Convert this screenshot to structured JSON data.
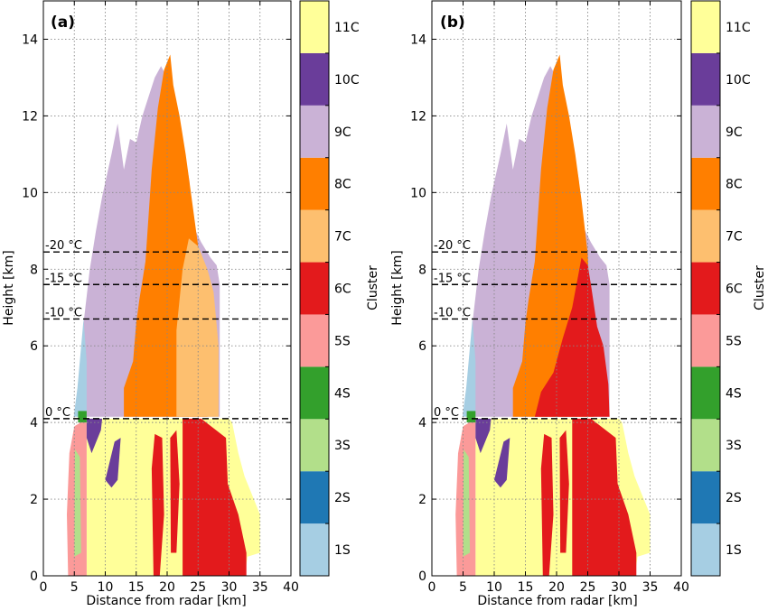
{
  "figure": {
    "panels": [
      "(a)",
      "(b)"
    ],
    "xlabel": "Distance from radar [km]",
    "ylabel": "Height [km]",
    "colorbar_label": "Cluster"
  },
  "legend": [
    {
      "label": "1S",
      "color": "#a6cee3"
    },
    {
      "label": "2S",
      "color": "#1f78b4"
    },
    {
      "label": "3S",
      "color": "#b2df8a"
    },
    {
      "label": "4S",
      "color": "#33a02c"
    },
    {
      "label": "5S",
      "color": "#fb9a99"
    },
    {
      "label": "6C",
      "color": "#e31a1c"
    },
    {
      "label": "7C",
      "color": "#fdbf6f"
    },
    {
      "label": "8C",
      "color": "#ff7f00"
    },
    {
      "label": "9C",
      "color": "#cab2d6"
    },
    {
      "label": "10C",
      "color": "#6a3d9a"
    },
    {
      "label": "11C",
      "color": "#ffff99"
    }
  ],
  "chart_data": [
    {
      "type": "heatmap",
      "panel": "(a)",
      "xlabel": "Distance from radar [km]",
      "ylabel": "Height [km]",
      "xlim": [
        0,
        40
      ],
      "ylim": [
        0,
        15
      ],
      "xticks": [
        0,
        5,
        10,
        15,
        20,
        25,
        30,
        35,
        40
      ],
      "yticks": [
        0,
        2,
        4,
        6,
        8,
        10,
        12,
        14
      ],
      "grid": true,
      "isotherms": [
        {
          "label": "0 °C",
          "height": 4.1
        },
        {
          "label": "-10 °C",
          "height": 6.7
        },
        {
          "label": "-15 °C",
          "height": 7.6
        },
        {
          "label": "-20 °C",
          "height": 8.45
        }
      ],
      "regions": [
        {
          "cluster": "9C",
          "poly": [
            [
              6.5,
              6.6
            ],
            [
              7.5,
              8.0
            ],
            [
              8.5,
              9.0
            ],
            [
              9.5,
              9.9
            ],
            [
              11.0,
              11.0
            ],
            [
              12.0,
              11.8
            ],
            [
              13.0,
              10.6
            ],
            [
              14.0,
              11.4
            ],
            [
              15.0,
              11.3
            ],
            [
              16.0,
              12.0
            ],
            [
              17.0,
              12.5
            ],
            [
              18.0,
              13.0
            ],
            [
              19.0,
              13.3
            ],
            [
              20.0,
              13.0
            ],
            [
              21.0,
              12.3
            ],
            [
              22.0,
              11.4
            ],
            [
              23.0,
              10.9
            ],
            [
              23.6,
              10.3
            ],
            [
              24.0,
              9.2
            ],
            [
              25.5,
              8.7
            ],
            [
              27.0,
              8.3
            ],
            [
              28.0,
              8.1
            ],
            [
              28.5,
              7.6
            ],
            [
              28.5,
              4.15
            ],
            [
              6.5,
              4.15
            ]
          ]
        },
        {
          "cluster": "8C",
          "poly": [
            [
              13.0,
              4.15
            ],
            [
              13.0,
              4.9
            ],
            [
              14.5,
              5.6
            ],
            [
              15.0,
              6.6
            ],
            [
              15.5,
              7.2
            ],
            [
              16.5,
              8.2
            ],
            [
              17.5,
              10.6
            ],
            [
              18.5,
              12.2
            ],
            [
              19.5,
              13.2
            ],
            [
              20.5,
              13.6
            ],
            [
              21.0,
              12.8
            ],
            [
              22.0,
              12.0
            ],
            [
              23.0,
              11.0
            ],
            [
              24.0,
              9.8
            ],
            [
              25.0,
              8.6
            ],
            [
              26.0,
              7.2
            ],
            [
              26.5,
              4.15
            ]
          ]
        },
        {
          "cluster": "7C",
          "poly": [
            [
              21.5,
              4.15
            ],
            [
              21.5,
              6.4
            ],
            [
              22.5,
              8.0
            ],
            [
              23.5,
              8.8
            ],
            [
              25.0,
              8.6
            ],
            [
              26.5,
              8.0
            ],
            [
              27.5,
              7.4
            ],
            [
              28.3,
              6.0
            ],
            [
              28.3,
              4.15
            ]
          ]
        },
        {
          "cluster": "11C",
          "poly": [
            [
              7.0,
              4.1
            ],
            [
              7.0,
              0.0
            ],
            [
              32.5,
              0.0
            ],
            [
              33.0,
              0.5
            ],
            [
              35.0,
              0.6
            ],
            [
              35.0,
              1.6
            ],
            [
              33.5,
              2.2
            ],
            [
              32.5,
              2.6
            ],
            [
              31.5,
              3.2
            ],
            [
              30.5,
              4.0
            ],
            [
              30.0,
              4.1
            ]
          ]
        },
        {
          "cluster": "6C",
          "poly": [
            [
              22.5,
              0.0
            ],
            [
              22.5,
              4.1
            ],
            [
              25.5,
              4.1
            ],
            [
              29.5,
              3.6
            ],
            [
              29.8,
              2.4
            ],
            [
              31.5,
              1.6
            ],
            [
              32.8,
              0.6
            ],
            [
              32.8,
              0.0
            ]
          ]
        },
        {
          "cluster": "6C",
          "poly": [
            [
              17.5,
              2.8
            ],
            [
              18.0,
              3.7
            ],
            [
              19.2,
              3.6
            ],
            [
              19.5,
              1.6
            ],
            [
              18.8,
              0.0
            ],
            [
              17.8,
              0.0
            ]
          ]
        },
        {
          "cluster": "6C",
          "poly": [
            [
              20.5,
              3.6
            ],
            [
              21.5,
              3.8
            ],
            [
              22.0,
              2.4
            ],
            [
              21.5,
              0.6
            ],
            [
              20.6,
              0.6
            ]
          ]
        },
        {
          "cluster": "5S",
          "poly": [
            [
              4.0,
              0.0
            ],
            [
              3.8,
              1.6
            ],
            [
              4.2,
              3.2
            ],
            [
              5.0,
              3.9
            ],
            [
              6.0,
              4.0
            ],
            [
              7.0,
              4.0
            ],
            [
              7.0,
              0.0
            ]
          ]
        },
        {
          "cluster": "3S",
          "poly": [
            [
              5.0,
              0.5
            ],
            [
              5.1,
              3.3
            ],
            [
              5.9,
              3.1
            ],
            [
              6.1,
              0.6
            ]
          ]
        },
        {
          "cluster": "10C",
          "poly": [
            [
              7.0,
              3.6
            ],
            [
              7.8,
              3.2
            ],
            [
              9.3,
              3.8
            ],
            [
              9.5,
              4.1
            ],
            [
              7.0,
              4.1
            ]
          ]
        },
        {
          "cluster": "10C",
          "poly": [
            [
              10.0,
              2.5
            ],
            [
              11.5,
              3.5
            ],
            [
              12.5,
              3.6
            ],
            [
              12.0,
              2.5
            ],
            [
              11.0,
              2.3
            ]
          ]
        },
        {
          "cluster": "1S",
          "poly": [
            [
              4.9,
              4.15
            ],
            [
              5.5,
              4.9
            ],
            [
              6.5,
              6.7
            ],
            [
              7.0,
              5.6
            ],
            [
              7.0,
              4.15
            ]
          ]
        },
        {
          "cluster": "4S",
          "poly": [
            [
              5.6,
              4.0
            ],
            [
              7.0,
              4.0
            ],
            [
              7.0,
              4.3
            ],
            [
              5.6,
              4.3
            ]
          ]
        }
      ]
    },
    {
      "type": "heatmap",
      "panel": "(b)",
      "xlabel": "Distance from radar [km]",
      "ylabel": "Height [km]",
      "xlim": [
        0,
        40
      ],
      "ylim": [
        0,
        15
      ],
      "xticks": [
        0,
        5,
        10,
        15,
        20,
        25,
        30,
        35,
        40
      ],
      "yticks": [
        0,
        2,
        4,
        6,
        8,
        10,
        12,
        14
      ],
      "grid": true,
      "isotherms": [
        {
          "label": "0 °C",
          "height": 4.1
        },
        {
          "label": "-10 °C",
          "height": 6.7
        },
        {
          "label": "-15 °C",
          "height": 7.6
        },
        {
          "label": "-20 °C",
          "height": 8.45
        }
      ],
      "regions": [
        {
          "cluster": "9C",
          "poly": [
            [
              6.5,
              6.6
            ],
            [
              7.5,
              8.0
            ],
            [
              8.5,
              9.0
            ],
            [
              9.5,
              9.9
            ],
            [
              11.0,
              11.0
            ],
            [
              12.0,
              11.8
            ],
            [
              13.0,
              10.6
            ],
            [
              14.0,
              11.4
            ],
            [
              15.0,
              11.3
            ],
            [
              16.0,
              12.0
            ],
            [
              17.0,
              12.5
            ],
            [
              18.0,
              13.0
            ],
            [
              19.0,
              13.3
            ],
            [
              20.0,
              13.0
            ],
            [
              21.0,
              12.3
            ],
            [
              22.0,
              11.4
            ],
            [
              23.0,
              10.9
            ],
            [
              23.6,
              10.3
            ],
            [
              24.0,
              9.2
            ],
            [
              25.5,
              8.7
            ],
            [
              27.0,
              8.3
            ],
            [
              28.0,
              8.1
            ],
            [
              28.5,
              7.6
            ],
            [
              28.5,
              4.15
            ],
            [
              6.5,
              4.15
            ]
          ]
        },
        {
          "cluster": "8C",
          "poly": [
            [
              13.0,
              4.15
            ],
            [
              13.0,
              4.9
            ],
            [
              14.5,
              5.6
            ],
            [
              15.0,
              6.6
            ],
            [
              15.5,
              7.2
            ],
            [
              16.5,
              8.2
            ],
            [
              17.5,
              10.6
            ],
            [
              18.5,
              12.2
            ],
            [
              19.5,
              13.2
            ],
            [
              20.5,
              13.6
            ],
            [
              21.0,
              12.8
            ],
            [
              22.0,
              12.0
            ],
            [
              23.0,
              11.0
            ],
            [
              24.0,
              9.8
            ],
            [
              25.0,
              8.4
            ],
            [
              25.5,
              6.5
            ],
            [
              26.0,
              4.15
            ]
          ]
        },
        {
          "cluster": "6C",
          "poly": [
            [
              16.5,
              4.15
            ],
            [
              17.5,
              4.8
            ],
            [
              19.5,
              5.3
            ],
            [
              21.0,
              6.2
            ],
            [
              22.5,
              7.0
            ],
            [
              24.0,
              8.3
            ],
            [
              25.0,
              8.1
            ],
            [
              25.5,
              7.6
            ],
            [
              26.5,
              6.5
            ],
            [
              27.5,
              6.0
            ],
            [
              28.3,
              5.0
            ],
            [
              28.5,
              4.15
            ]
          ]
        },
        {
          "cluster": "11C",
          "poly": [
            [
              7.0,
              4.1
            ],
            [
              7.0,
              0.0
            ],
            [
              32.5,
              0.0
            ],
            [
              33.0,
              0.5
            ],
            [
              35.0,
              0.6
            ],
            [
              35.0,
              1.6
            ],
            [
              33.5,
              2.2
            ],
            [
              32.5,
              2.6
            ],
            [
              31.5,
              3.2
            ],
            [
              30.5,
              4.0
            ],
            [
              30.0,
              4.1
            ]
          ]
        },
        {
          "cluster": "6C",
          "poly": [
            [
              22.5,
              0.0
            ],
            [
              22.5,
              4.1
            ],
            [
              25.5,
              4.1
            ],
            [
              29.5,
              3.6
            ],
            [
              29.8,
              2.4
            ],
            [
              31.5,
              1.6
            ],
            [
              32.8,
              0.6
            ],
            [
              32.8,
              0.0
            ]
          ]
        },
        {
          "cluster": "6C",
          "poly": [
            [
              17.5,
              2.8
            ],
            [
              18.0,
              3.7
            ],
            [
              19.2,
              3.6
            ],
            [
              19.5,
              1.6
            ],
            [
              18.8,
              0.0
            ],
            [
              17.8,
              0.0
            ]
          ]
        },
        {
          "cluster": "6C",
          "poly": [
            [
              20.5,
              3.6
            ],
            [
              21.5,
              3.8
            ],
            [
              22.0,
              2.4
            ],
            [
              21.5,
              0.6
            ],
            [
              20.6,
              0.6
            ]
          ]
        },
        {
          "cluster": "5S",
          "poly": [
            [
              4.0,
              0.0
            ],
            [
              3.8,
              1.6
            ],
            [
              4.2,
              3.2
            ],
            [
              5.0,
              3.9
            ],
            [
              6.0,
              4.0
            ],
            [
              7.0,
              4.0
            ],
            [
              7.0,
              0.0
            ]
          ]
        },
        {
          "cluster": "3S",
          "poly": [
            [
              5.0,
              0.5
            ],
            [
              5.1,
              3.3
            ],
            [
              5.9,
              3.1
            ],
            [
              6.1,
              0.6
            ]
          ]
        },
        {
          "cluster": "10C",
          "poly": [
            [
              7.0,
              3.6
            ],
            [
              7.8,
              3.2
            ],
            [
              9.3,
              3.8
            ],
            [
              9.5,
              4.1
            ],
            [
              7.0,
              4.1
            ]
          ]
        },
        {
          "cluster": "10C",
          "poly": [
            [
              10.0,
              2.5
            ],
            [
              11.5,
              3.5
            ],
            [
              12.5,
              3.6
            ],
            [
              12.0,
              2.5
            ],
            [
              11.0,
              2.3
            ]
          ]
        },
        {
          "cluster": "1S",
          "poly": [
            [
              4.9,
              4.15
            ],
            [
              5.5,
              4.9
            ],
            [
              6.5,
              6.7
            ],
            [
              7.0,
              5.6
            ],
            [
              7.0,
              4.15
            ]
          ]
        },
        {
          "cluster": "4S",
          "poly": [
            [
              5.6,
              4.0
            ],
            [
              7.0,
              4.0
            ],
            [
              7.0,
              4.3
            ],
            [
              5.6,
              4.3
            ]
          ]
        }
      ]
    }
  ]
}
